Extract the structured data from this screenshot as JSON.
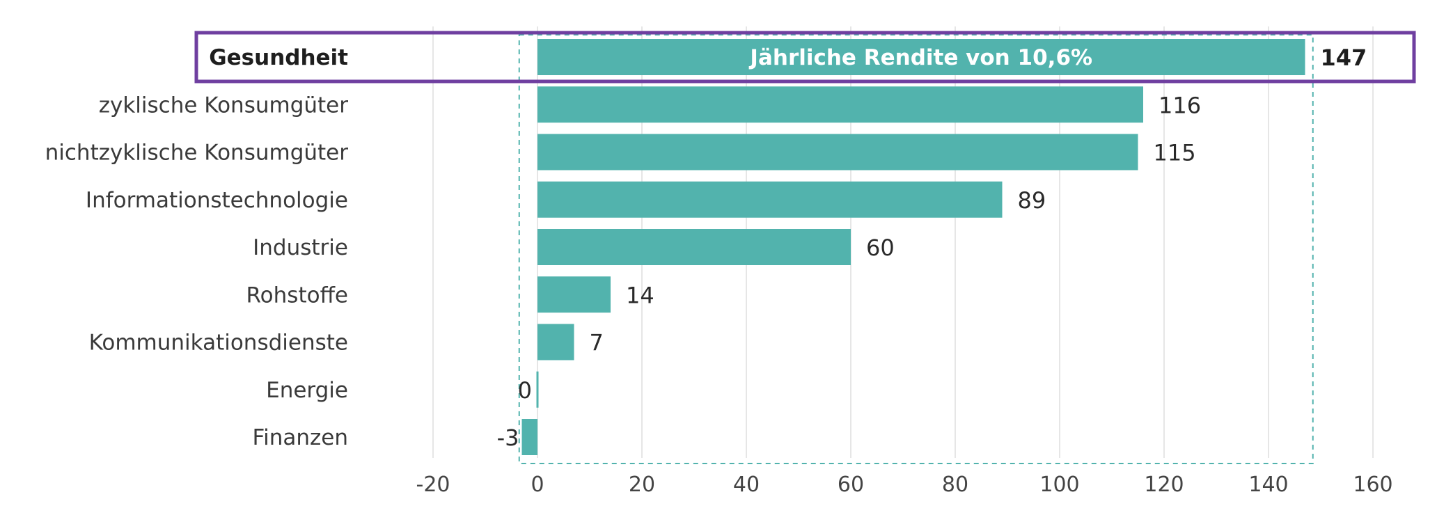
{
  "chart_data": {
    "type": "bar",
    "orientation": "horizontal",
    "categories": [
      "Gesundheit",
      "zyklische Konsumgüter",
      "nichtzyklische Konsumgüter",
      "Informationstechnologie",
      "Industrie",
      "Rohstoffe",
      "Kommunikationsdienste",
      "Energie",
      "Finanzen"
    ],
    "values": [
      147,
      116,
      115,
      89,
      60,
      14,
      7,
      0,
      -3
    ],
    "value_labels": [
      "147",
      "116",
      "115",
      "89",
      "60",
      "14",
      "7",
      "0",
      "-3"
    ],
    "xlim": [
      -20,
      160
    ],
    "xticks": [
      -20,
      0,
      20,
      40,
      60,
      80,
      100,
      120,
      140,
      160
    ],
    "xtick_labels": [
      "-20",
      "0",
      "20",
      "40",
      "60",
      "80",
      "100",
      "120",
      "140",
      "160"
    ],
    "grid": "vertical",
    "highlight": {
      "category": "Gesundheit",
      "annotation": "Jährliche Rendite von 10,6%"
    },
    "title": "",
    "xlabel": "",
    "ylabel": ""
  },
  "colors": {
    "bar": "#52b3ad",
    "highlight_border": "#6f3fa0",
    "dashed_box": "#52b3ad",
    "grid": "#dedede"
  }
}
